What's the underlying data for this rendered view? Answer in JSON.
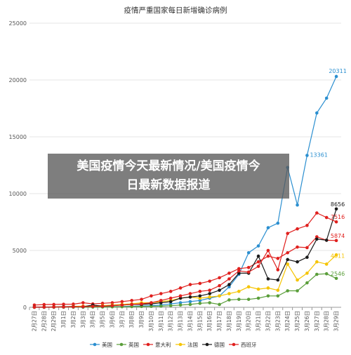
{
  "chart_data": {
    "type": "line",
    "title": "疫情严重国家每日新增确诊病例",
    "categories": [
      "2月27日",
      "2月28日",
      "2月29日",
      "3月1日",
      "3月2日",
      "3月3日",
      "3月4日",
      "3月5日",
      "3月6日",
      "3月7日",
      "3月8日",
      "3月9日",
      "3月10日",
      "3月11日",
      "3月12日",
      "3月13日",
      "3月14日",
      "3月15日",
      "3月16日",
      "3月17日",
      "3月18日",
      "3月19日",
      "3月20日",
      "3月21日",
      "3月22日",
      "3月23日",
      "3月24日",
      "3月25日",
      "3月26日",
      "3月27日",
      "3月28日",
      "3月29日"
    ],
    "ylim": [
      0,
      25000
    ],
    "yticks": [
      0,
      5000,
      10000,
      15000,
      20000,
      25000
    ],
    "grid": true,
    "legend_position": "bottom",
    "series": [
      {
        "name": "美国",
        "color": "#2b8fd0",
        "end_label": "20311",
        "values": [
          2,
          2,
          5,
          10,
          20,
          25,
          30,
          40,
          60,
          70,
          100,
          120,
          150,
          200,
          300,
          400,
          500,
          600,
          800,
          1000,
          1800,
          2900,
          4800,
          5400,
          7000,
          7400,
          12300,
          9000,
          13361,
          17100,
          18400,
          20311
        ],
        "labels": {
          "28": "13361",
          "31": "20311"
        }
      },
      {
        "name": "英国",
        "color": "#5a9e3a",
        "end_label": "2546",
        "values": [
          5,
          5,
          5,
          10,
          10,
          15,
          20,
          30,
          40,
          50,
          60,
          70,
          80,
          100,
          140,
          200,
          250,
          350,
          400,
          250,
          650,
          700,
          700,
          800,
          1000,
          1000,
          1450,
          1450,
          2150,
          2900,
          2950,
          2546
        ],
        "labels": {
          "31": "2546"
        }
      },
      {
        "name": "意大利",
        "color": "#e0201e",
        "end_label": "5874",
        "values": [
          200,
          240,
          250,
          270,
          280,
          400,
          300,
          350,
          400,
          500,
          600,
          700,
          1000,
          1200,
          1400,
          1700,
          2000,
          2100,
          2300,
          2600,
          3000,
          3400,
          3500,
          4000,
          4500,
          4300,
          4800,
          5300,
          5250,
          6200,
          5900,
          5874
        ],
        "labels": {
          "31": "5874"
        }
      },
      {
        "name": "法国",
        "color": "#f5c400",
        "end_label": "4611",
        "values": [
          10,
          20,
          30,
          50,
          80,
          100,
          120,
          150,
          200,
          250,
          300,
          400,
          400,
          500,
          600,
          800,
          900,
          800,
          900,
          1000,
          1200,
          1400,
          1800,
          1600,
          1700,
          1500,
          3800,
          2400,
          3000,
          4000,
          3800,
          4611
        ],
        "labels": {
          "31": "4611"
        }
      },
      {
        "name": "德国",
        "color": "#1a1a1a",
        "end_label": "8656",
        "values": [
          20,
          20,
          30,
          50,
          60,
          50,
          200,
          100,
          150,
          200,
          250,
          250,
          300,
          400,
          500,
          800,
          900,
          1000,
          1200,
          1500,
          2000,
          3000,
          3000,
          4500,
          2500,
          2400,
          4200,
          4000,
          4400,
          6000,
          5900,
          8656
        ],
        "labels": {
          "31": "8656"
        }
      },
      {
        "name": "西班牙",
        "color": "#e0201e",
        "end_label": "7516",
        "values": [
          5,
          10,
          20,
          30,
          40,
          60,
          80,
          100,
          150,
          200,
          250,
          300,
          400,
          600,
          800,
          1000,
          1200,
          1400,
          1500,
          1900,
          2500,
          3200,
          3100,
          3600,
          5000,
          3300,
          6500,
          6900,
          7200,
          8300,
          7900,
          7516
        ],
        "labels": {
          "31": "7516"
        }
      }
    ]
  }
}
